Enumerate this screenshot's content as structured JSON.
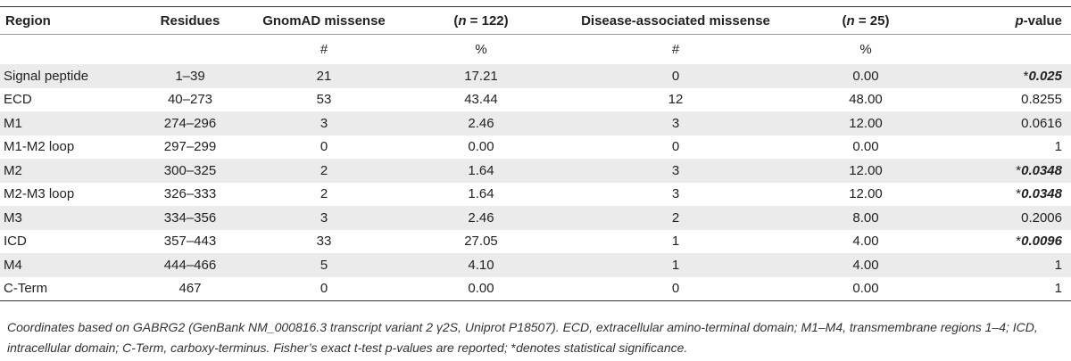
{
  "header": {
    "region": "Region",
    "residues": "Residues",
    "gnomad_missense": "GnomAD missense",
    "gnomad_n_prefix": "(",
    "gnomad_n_italic": "n",
    "gnomad_n_suffix": " = 122)",
    "disease_missense": "Disease-associated missense",
    "disease_n_prefix": "(",
    "disease_n_italic": "n",
    "disease_n_suffix": " = 25)",
    "pvalue_italic": "p",
    "pvalue_suffix": "-value"
  },
  "subheader": {
    "gnomad_count": "#",
    "gnomad_pct": "%",
    "disease_count": "#",
    "disease_pct": "%"
  },
  "rows": [
    {
      "region": "Signal peptide",
      "residues": "1–39",
      "gn_count": "21",
      "gn_pct": "17.21",
      "da_count": "0",
      "da_pct": "0.00",
      "p_star": "*",
      "p": "0.025",
      "sig": true
    },
    {
      "region": "ECD",
      "residues": "40–273",
      "gn_count": "53",
      "gn_pct": "43.44",
      "da_count": "12",
      "da_pct": "48.00",
      "p_star": "",
      "p": "0.8255",
      "sig": false
    },
    {
      "region": "M1",
      "residues": "274–296",
      "gn_count": "3",
      "gn_pct": "2.46",
      "da_count": "3",
      "da_pct": "12.00",
      "p_star": "",
      "p": "0.0616",
      "sig": false
    },
    {
      "region": "M1-M2 loop",
      "residues": "297–299",
      "gn_count": "0",
      "gn_pct": "0.00",
      "da_count": "0",
      "da_pct": "0.00",
      "p_star": "",
      "p": "1",
      "sig": false
    },
    {
      "region": "M2",
      "residues": "300–325",
      "gn_count": "2",
      "gn_pct": "1.64",
      "da_count": "3",
      "da_pct": "12.00",
      "p_star": "*",
      "p": "0.0348",
      "sig": true
    },
    {
      "region": "M2-M3 loop",
      "residues": "326–333",
      "gn_count": "2",
      "gn_pct": "1.64",
      "da_count": "3",
      "da_pct": "12.00",
      "p_star": "*",
      "p": "0.0348",
      "sig": true
    },
    {
      "region": "M3",
      "residues": "334–356",
      "gn_count": "3",
      "gn_pct": "2.46",
      "da_count": "2",
      "da_pct": "8.00",
      "p_star": "",
      "p": "0.2006",
      "sig": false
    },
    {
      "region": "ICD",
      "residues": "357–443",
      "gn_count": "33",
      "gn_pct": "27.05",
      "da_count": "1",
      "da_pct": "4.00",
      "p_star": "*",
      "p": "0.0096",
      "sig": true
    },
    {
      "region": "M4",
      "residues": "444–466",
      "gn_count": "5",
      "gn_pct": "4.10",
      "da_count": "1",
      "da_pct": "4.00",
      "p_star": "",
      "p": "1",
      "sig": false
    },
    {
      "region": "C-Term",
      "residues": "467",
      "gn_count": "0",
      "gn_pct": "0.00",
      "da_count": "0",
      "da_pct": "0.00",
      "p_star": "",
      "p": "1",
      "sig": false
    }
  ],
  "footnote": {
    "text_before_star": "Coordinates based on GABRG2 (GenBank NM_000816.3 transcript variant 2 γ2S, Uniprot P18507). ECD, extracellular amino-terminal domain; M1–M4, transmembrane regions 1–4; ICD, intracellular domain; C-Term, carboxy-terminus. Fisher’s exact t-test p-values are reported; ",
    "star": "*",
    "text_after_star": "denotes statistical significance."
  }
}
